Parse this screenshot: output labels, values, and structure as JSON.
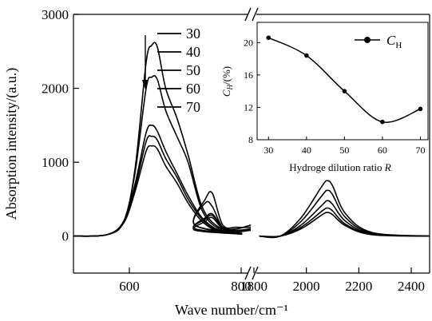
{
  "chart_data": {
    "type": "line",
    "xlabel": "Wave number/cm⁻¹",
    "ylabel": "Absorption intensity/(a.u.)",
    "ylim": [
      -500,
      3000
    ],
    "yticks": [
      "0",
      "1000",
      "2000",
      "3000"
    ],
    "xaxis_segments": [
      {
        "xlim": [
          500,
          820
        ],
        "ticks": [
          "600",
          "800"
        ]
      },
      {
        "xlim": [
          1800,
          2470
        ],
        "ticks": [
          "1800",
          "2000",
          "2200",
          "2400"
        ]
      }
    ],
    "axis_break": true,
    "legend_position": "top-center",
    "legend_arrow": "down",
    "series": [
      {
        "name": "30",
        "values_low": [
          [
            500,
            0
          ],
          [
            560,
            20
          ],
          [
            590,
            200
          ],
          [
            610,
            900
          ],
          [
            630,
            2350
          ],
          [
            640,
            2580
          ],
          [
            650,
            2560
          ],
          [
            665,
            2000
          ],
          [
            685,
            1600
          ],
          [
            705,
            1100
          ],
          [
            730,
            400
          ],
          [
            760,
            120
          ],
          [
            800,
            40
          ]
        ],
        "values_mid": [
          [
            820,
            150
          ],
          [
            850,
            450
          ],
          [
            870,
            400
          ],
          [
            900,
            120
          ],
          [
            940,
            100
          ],
          [
            980,
            150
          ]
        ],
        "values_high": [
          [
            1820,
            0
          ],
          [
            1900,
            0
          ],
          [
            1980,
            250
          ],
          [
            2060,
            680
          ],
          [
            2080,
            750
          ],
          [
            2100,
            680
          ],
          [
            2150,
            300
          ],
          [
            2250,
            50
          ],
          [
            2470,
            0
          ]
        ]
      },
      {
        "name": "40",
        "values_low": [
          [
            500,
            0
          ],
          [
            560,
            20
          ],
          [
            590,
            200
          ],
          [
            610,
            850
          ],
          [
            630,
            2000
          ],
          [
            640,
            2150
          ],
          [
            650,
            2120
          ],
          [
            665,
            1700
          ],
          [
            685,
            1350
          ],
          [
            705,
            1000
          ],
          [
            730,
            350
          ],
          [
            760,
            100
          ],
          [
            800,
            30
          ]
        ],
        "values_mid": [
          [
            820,
            150
          ],
          [
            850,
            500
          ],
          [
            870,
            580
          ],
          [
            900,
            150
          ],
          [
            940,
            120
          ],
          [
            980,
            120
          ]
        ],
        "values_high": [
          [
            1820,
            0
          ],
          [
            1900,
            0
          ],
          [
            1980,
            200
          ],
          [
            2060,
            550
          ],
          [
            2080,
            620
          ],
          [
            2100,
            560
          ],
          [
            2150,
            250
          ],
          [
            2250,
            40
          ],
          [
            2470,
            0
          ]
        ]
      },
      {
        "name": "50",
        "values_low": [
          [
            500,
            0
          ],
          [
            560,
            20
          ],
          [
            590,
            200
          ],
          [
            610,
            700
          ],
          [
            630,
            1400
          ],
          [
            640,
            1500
          ],
          [
            650,
            1420
          ],
          [
            665,
            1150
          ],
          [
            685,
            850
          ],
          [
            705,
            550
          ],
          [
            730,
            250
          ],
          [
            760,
            80
          ],
          [
            800,
            30
          ]
        ],
        "values_mid": [
          [
            820,
            100
          ],
          [
            850,
            250
          ],
          [
            870,
            300
          ],
          [
            900,
            120
          ],
          [
            940,
            80
          ],
          [
            980,
            100
          ]
        ],
        "values_high": [
          [
            1820,
            0
          ],
          [
            1900,
            0
          ],
          [
            1980,
            150
          ],
          [
            2060,
            420
          ],
          [
            2080,
            480
          ],
          [
            2100,
            430
          ],
          [
            2150,
            200
          ],
          [
            2250,
            30
          ],
          [
            2470,
            0
          ]
        ]
      },
      {
        "name": "60",
        "values_low": [
          [
            500,
            0
          ],
          [
            560,
            20
          ],
          [
            590,
            200
          ],
          [
            610,
            650
          ],
          [
            630,
            1280
          ],
          [
            640,
            1350
          ],
          [
            650,
            1300
          ],
          [
            665,
            1050
          ],
          [
            685,
            800
          ],
          [
            705,
            500
          ],
          [
            730,
            230
          ],
          [
            760,
            70
          ],
          [
            800,
            30
          ]
        ],
        "values_mid": [
          [
            820,
            100
          ],
          [
            850,
            230
          ],
          [
            870,
            280
          ],
          [
            900,
            110
          ],
          [
            940,
            70
          ],
          [
            980,
            90
          ]
        ],
        "values_high": [
          [
            1820,
            0
          ],
          [
            1900,
            0
          ],
          [
            1980,
            120
          ],
          [
            2060,
            340
          ],
          [
            2080,
            380
          ],
          [
            2100,
            340
          ],
          [
            2150,
            160
          ],
          [
            2250,
            25
          ],
          [
            2470,
            0
          ]
        ]
      },
      {
        "name": "70",
        "values_low": [
          [
            500,
            0
          ],
          [
            560,
            20
          ],
          [
            590,
            180
          ],
          [
            610,
            600
          ],
          [
            630,
            1150
          ],
          [
            640,
            1220
          ],
          [
            650,
            1180
          ],
          [
            665,
            950
          ],
          [
            685,
            720
          ],
          [
            705,
            450
          ],
          [
            730,
            200
          ],
          [
            760,
            60
          ],
          [
            800,
            30
          ]
        ],
        "values_mid": [
          [
            820,
            80
          ],
          [
            850,
            200
          ],
          [
            870,
            250
          ],
          [
            900,
            100
          ],
          [
            940,
            60
          ],
          [
            980,
            80
          ]
        ],
        "values_high": [
          [
            1820,
            0
          ],
          [
            1900,
            0
          ],
          [
            1980,
            100
          ],
          [
            2060,
            290
          ],
          [
            2080,
            320
          ],
          [
            2100,
            290
          ],
          [
            2150,
            140
          ],
          [
            2250,
            20
          ],
          [
            2470,
            0
          ]
        ]
      }
    ],
    "inset": {
      "type": "line",
      "xlabel": "Hydroge dilution ratio R",
      "ylabel": "C_H/(%)",
      "ylabel_main": "C",
      "ylabel_sub": "H",
      "ylabel_rest": "/(%)",
      "xlabel_main": "Hydroge dilution ratio ",
      "xlabel_italic": "R",
      "xlim": [
        27,
        72
      ],
      "ylim": [
        8,
        22.5
      ],
      "xticks": [
        "30",
        "40",
        "50",
        "60",
        "70"
      ],
      "yticks": [
        "8",
        "12",
        "16",
        "20"
      ],
      "series": [
        {
          "name": "C_H",
          "name_main": "C",
          "name_sub": "H",
          "x": [
            30,
            40,
            50,
            60,
            70
          ],
          "y": [
            20.6,
            18.4,
            14.0,
            10.2,
            11.8
          ]
        }
      ]
    }
  }
}
